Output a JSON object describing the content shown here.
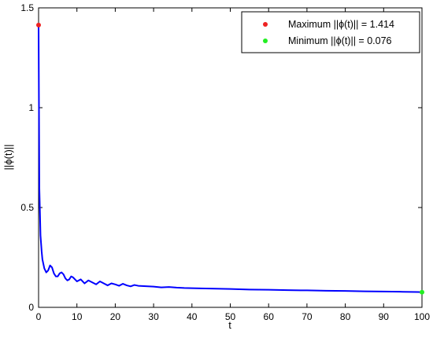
{
  "chart_data": {
    "type": "line",
    "title": "",
    "xlabel": "t",
    "ylabel": "||ϕ(t)||",
    "xlim": [
      0,
      100
    ],
    "ylim": [
      0,
      1.5
    ],
    "x_ticks": [
      0,
      10,
      20,
      30,
      40,
      50,
      60,
      70,
      80,
      90,
      100
    ],
    "y_ticks": [
      0,
      0.5,
      1,
      1.5
    ],
    "grid": false,
    "legend_position": "top-right",
    "series": [
      {
        "style": "line",
        "color": "#0000ff",
        "x": [
          0,
          0.2,
          0.5,
          0.8,
          1.0,
          1.5,
          2.0,
          2.5,
          3.0,
          3.5,
          4.0,
          4.5,
          5.0,
          5.5,
          6.0,
          6.5,
          7.0,
          7.5,
          8.0,
          8.5,
          9.0,
          9.5,
          10,
          11,
          12,
          13,
          14,
          15,
          16,
          17,
          18,
          19,
          20,
          21,
          22,
          23,
          24,
          25,
          26,
          28,
          30,
          32,
          34,
          36,
          38,
          40,
          45,
          50,
          55,
          60,
          65,
          70,
          75,
          80,
          85,
          90,
          95,
          99,
          100
        ],
        "y": [
          1.414,
          0.6,
          0.36,
          0.28,
          0.24,
          0.195,
          0.175,
          0.185,
          0.21,
          0.2,
          0.17,
          0.155,
          0.155,
          0.17,
          0.175,
          0.165,
          0.145,
          0.135,
          0.14,
          0.155,
          0.15,
          0.14,
          0.13,
          0.14,
          0.12,
          0.135,
          0.125,
          0.115,
          0.13,
          0.12,
          0.11,
          0.12,
          0.115,
          0.108,
          0.118,
          0.11,
          0.105,
          0.112,
          0.108,
          0.106,
          0.104,
          0.1,
          0.102,
          0.099,
          0.097,
          0.096,
          0.094,
          0.092,
          0.089,
          0.088,
          0.086,
          0.085,
          0.083,
          0.082,
          0.08,
          0.079,
          0.078,
          0.077,
          0.076
        ]
      }
    ],
    "markers": [
      {
        "label": "Maximum ||ϕ(t)|| = 1.414",
        "x": 0,
        "y": 1.414,
        "color": "#ee2222"
      },
      {
        "label": "Minimum ||ϕ(t)|| = 0.076",
        "x": 100,
        "y": 0.076,
        "color": "#22ee22"
      }
    ]
  }
}
